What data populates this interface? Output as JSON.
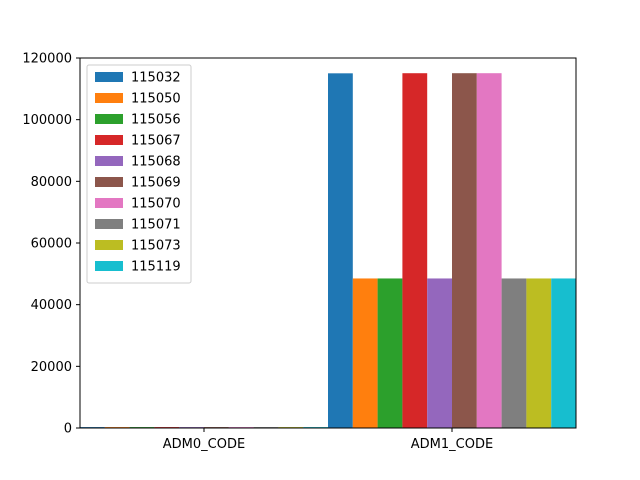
{
  "chart_data": {
    "type": "bar",
    "title": "",
    "xlabel": "",
    "ylabel": "",
    "categories": [
      "ADM0_CODE",
      "ADM1_CODE"
    ],
    "ylim": [
      0,
      120000
    ],
    "yticks": [
      0,
      20000,
      40000,
      60000,
      80000,
      100000,
      120000
    ],
    "legend_position": "upper-left",
    "grid": false,
    "series": [
      {
        "name": "115032",
        "color": "#1f77b4",
        "values": [
          300,
          115032
        ]
      },
      {
        "name": "115050",
        "color": "#ff7f0e",
        "values": [
          300,
          48500
        ]
      },
      {
        "name": "115056",
        "color": "#2ca02c",
        "values": [
          300,
          48500
        ]
      },
      {
        "name": "115067",
        "color": "#d62728",
        "values": [
          300,
          115067
        ]
      },
      {
        "name": "115068",
        "color": "#9467bd",
        "values": [
          300,
          48500
        ]
      },
      {
        "name": "115069",
        "color": "#8c564b",
        "values": [
          300,
          115069
        ]
      },
      {
        "name": "115070",
        "color": "#e377c2",
        "values": [
          300,
          115070
        ]
      },
      {
        "name": "115071",
        "color": "#7f7f7f",
        "values": [
          300,
          48500
        ]
      },
      {
        "name": "115073",
        "color": "#bcbd22",
        "values": [
          300,
          48500
        ]
      },
      {
        "name": "115119",
        "color": "#17becf",
        "values": [
          300,
          48500
        ]
      }
    ]
  }
}
